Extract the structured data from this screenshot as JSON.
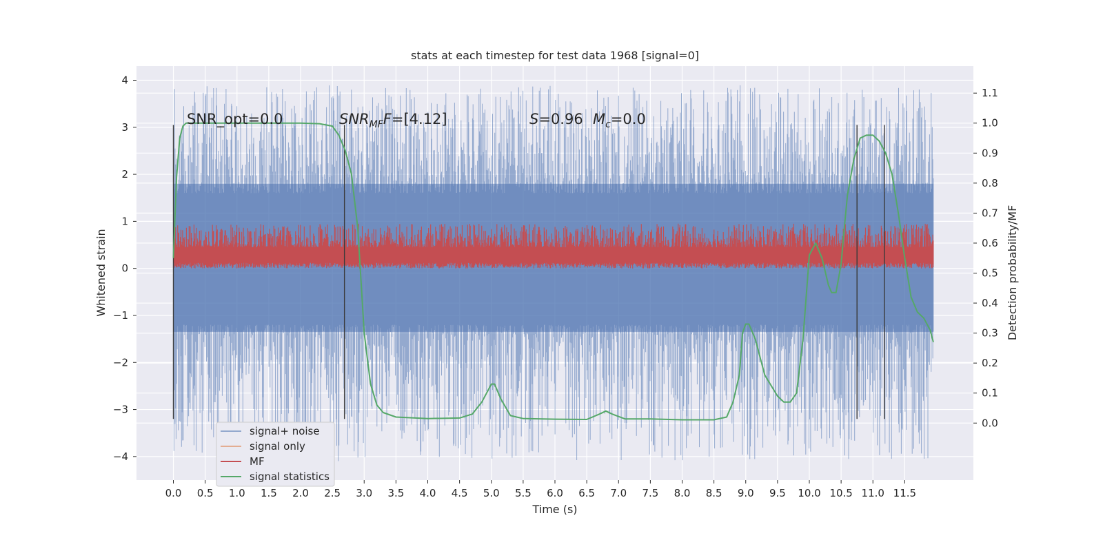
{
  "chart_data": {
    "type": "line",
    "title": "stats at each timestep for test data 1968 [signal=0]",
    "xlabel": "Time (s)",
    "ylabel": "Whitened strain",
    "y2label": "Detection probability/MF",
    "xlim": [
      -0.58,
      12.58
    ],
    "ylim": [
      -4.5,
      4.3
    ],
    "y2lim": [
      -0.19,
      1.19
    ],
    "grid": true,
    "background": "#eaeaf2",
    "x_ticks": [
      "0.0",
      "0.5",
      "1.0",
      "1.5",
      "2.0",
      "2.5",
      "3.0",
      "3.5",
      "4.0",
      "4.5",
      "5.0",
      "5.5",
      "6.0",
      "6.5",
      "7.0",
      "7.5",
      "8.0",
      "8.5",
      "9.0",
      "9.5",
      "10.0",
      "10.5",
      "11.0",
      "11.5"
    ],
    "y_ticks": [
      "4",
      "3",
      "2",
      "1",
      "0",
      "−1",
      "−2",
      "−3",
      "−4"
    ],
    "y2_ticks": [
      "1.1",
      "1.0",
      "0.9",
      "0.8",
      "0.7",
      "0.6",
      "0.5",
      "0.4",
      "0.3",
      "0.2",
      "0.1",
      "0.0"
    ],
    "annotations": {
      "snr_opt": "SNR_opt=0.0",
      "snr_mf_main": "SNR",
      "snr_mf_sub": "MF",
      "snr_mf_rest": "=[4.12]",
      "s_main": "S",
      "s_rest": "=0.96",
      "mc_main": "M",
      "mc_sub": "c",
      "mc_rest": "=0.0"
    },
    "series": [
      {
        "name": "signal+ noise",
        "color": "#4c72b0",
        "axis": "left",
        "kind": "noise",
        "x_range": [
          0,
          11.95
        ],
        "core_band": [
          -1.35,
          1.8
        ],
        "spike_range": [
          -4.1,
          3.9
        ]
      },
      {
        "name": "signal only",
        "color": "#dd8452",
        "axis": "left",
        "kind": "flat",
        "values": [
          0
        ]
      },
      {
        "name": "MF",
        "color": "#c44e52",
        "axis": "left",
        "kind": "band",
        "x_range": [
          0,
          11.95
        ],
        "band": [
          0.0,
          0.95
        ]
      },
      {
        "name": "signal statistics",
        "color": "#55a868",
        "axis": "right",
        "kind": "line",
        "x": [
          0.0,
          0.05,
          0.1,
          0.15,
          0.2,
          0.3,
          0.5,
          1.0,
          1.5,
          2.0,
          2.3,
          2.5,
          2.6,
          2.7,
          2.8,
          2.9,
          3.0,
          3.1,
          3.2,
          3.3,
          3.5,
          4.0,
          4.5,
          4.7,
          4.85,
          5.0,
          5.05,
          5.15,
          5.3,
          5.5,
          6.0,
          6.5,
          6.7,
          6.8,
          6.9,
          7.1,
          7.5,
          8.0,
          8.5,
          8.7,
          8.8,
          8.9,
          8.95,
          9.0,
          9.05,
          9.15,
          9.3,
          9.5,
          9.6,
          9.7,
          9.8,
          9.9,
          10.0,
          10.1,
          10.2,
          10.3,
          10.35,
          10.42,
          10.5,
          10.55,
          10.6,
          10.7,
          10.8,
          10.9,
          11.0,
          11.1,
          11.2,
          11.3,
          11.4,
          11.5,
          11.6,
          11.7,
          11.8,
          11.9,
          11.95
        ],
        "y": [
          0.55,
          0.82,
          0.95,
          0.99,
          1.0,
          1.0,
          1.0,
          1.0,
          1.0,
          1.0,
          0.998,
          0.99,
          0.96,
          0.91,
          0.83,
          0.65,
          0.3,
          0.13,
          0.06,
          0.035,
          0.02,
          0.015,
          0.017,
          0.03,
          0.07,
          0.13,
          0.13,
          0.08,
          0.025,
          0.015,
          0.013,
          0.012,
          0.03,
          0.04,
          0.03,
          0.014,
          0.014,
          0.011,
          0.011,
          0.02,
          0.07,
          0.16,
          0.3,
          0.33,
          0.33,
          0.28,
          0.16,
          0.09,
          0.07,
          0.07,
          0.1,
          0.28,
          0.56,
          0.6,
          0.55,
          0.46,
          0.435,
          0.435,
          0.53,
          0.65,
          0.76,
          0.88,
          0.95,
          0.96,
          0.96,
          0.94,
          0.9,
          0.83,
          0.7,
          0.55,
          0.42,
          0.37,
          0.35,
          0.31,
          0.27
        ]
      }
    ],
    "markers": [
      0.0,
      2.69,
      10.75,
      11.18
    ],
    "marker_range": [
      -3.2,
      3.05
    ],
    "legend_position": "lower left"
  }
}
